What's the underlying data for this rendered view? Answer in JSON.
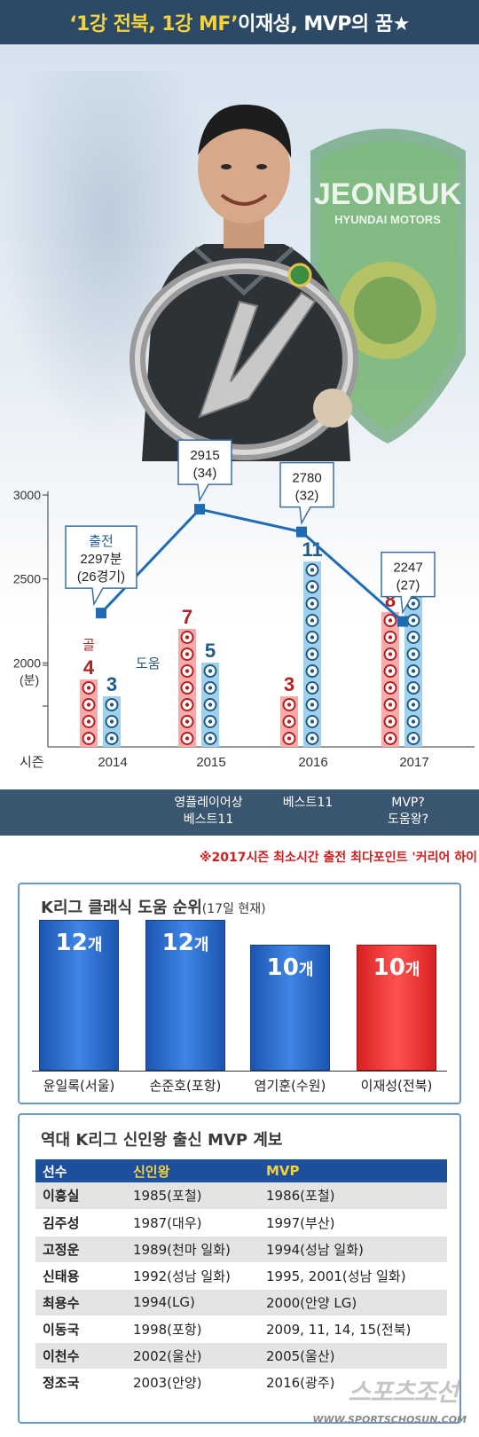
{
  "header": {
    "title_quoted": "‘1강 전북, 1강 MF’",
    "title_rest": " 이재성, MVP의 꿈★"
  },
  "emblem": {
    "line1": "JEONBUK",
    "line2": "HYUNDAI MOTORS"
  },
  "chart_data": {
    "type": "bar+line",
    "categories": [
      "2014",
      "2015",
      "2016",
      "2017"
    ],
    "x_axis_label": "시즌",
    "line": {
      "unit_label": "(분)",
      "y_ticks": [
        2000,
        2500,
        3000
      ],
      "ylim": [
        1500,
        3000
      ],
      "values": [
        2297,
        2915,
        2780,
        2247
      ],
      "games": [
        26,
        34,
        32,
        27
      ],
      "callouts": [
        {
          "lines": [
            "출전",
            "2297분",
            "(26경기)"
          ]
        },
        {
          "lines": [
            "2915",
            "(34)"
          ]
        },
        {
          "lines": [
            "2780",
            "(32)"
          ]
        },
        {
          "lines": [
            "2247",
            "(27)"
          ]
        }
      ]
    },
    "series": [
      {
        "name": "골",
        "values": [
          4,
          7,
          3,
          8
        ],
        "color": "#b32020",
        "fill": "#f7aaaa"
      },
      {
        "name": "도움",
        "values": [
          3,
          5,
          11,
          10
        ],
        "color": "#1f5a86",
        "fill": "#9fd0ec"
      }
    ],
    "line_color": "#1f6bb4",
    "grid": false
  },
  "awards": [
    "",
    "영플레이어상\n베스트11",
    "베스트11",
    "MVP?\n도움왕?"
  ],
  "note": "※2017시즌 최소시간 출전 최다포인트 '커리어 하이",
  "assist_rank": {
    "title": "K리그 클래식 도움 순위",
    "subtitle": "(17일 현재)",
    "players": [
      {
        "name": "윤일록(서울)",
        "count": 12,
        "label": "12개",
        "color": "blue"
      },
      {
        "name": "손준호(포항)",
        "count": 12,
        "label": "12개",
        "color": "blue"
      },
      {
        "name": "염기훈(수원)",
        "count": 10,
        "label": "10개",
        "color": "blue"
      },
      {
        "name": "이재성(전북)",
        "count": 10,
        "label": "10개",
        "color": "red"
      }
    ]
  },
  "history": {
    "title": "역대 K리그 신인왕 출신 MVP 계보",
    "headers": [
      "선수",
      "신인왕",
      "MVP"
    ],
    "rows": [
      [
        "이흥실",
        "1985(포철)",
        "1986(포철)"
      ],
      [
        "김주성",
        "1987(대우)",
        "1997(부산)"
      ],
      [
        "고정운",
        "1989(천마 일화)",
        "1994(성남 일화)"
      ],
      [
        "신태용",
        "1992(성남 일화)",
        "1995, 2001(성남 일화)"
      ],
      [
        "최용수",
        "1994(LG)",
        "2000(안양 LG)"
      ],
      [
        "이동국",
        "1998(포항)",
        "2009, 11, 14, 15(전북)"
      ],
      [
        "이천수",
        "2002(울산)",
        "2005(울산)"
      ],
      [
        "정조국",
        "2003(안양)",
        "2016(광주)"
      ]
    ]
  },
  "watermark": {
    "main": "스포츠조선",
    "url": "WWW.SPORTSCHOSUN.COM"
  }
}
